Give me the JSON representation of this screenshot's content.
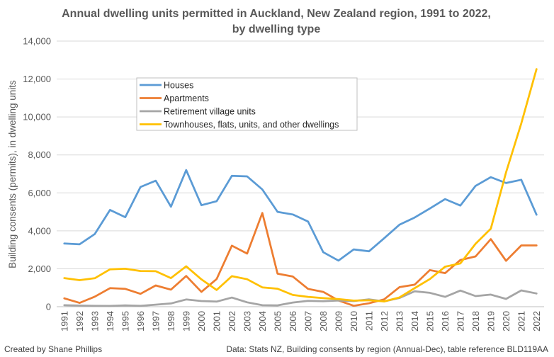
{
  "chart_data": {
    "type": "line",
    "title_line1": "Annual dwelling units permitted in Auckland, New Zealand region, 1991 to 2022,",
    "title_line2": "by dwelling type",
    "xlabel": "",
    "ylabel": "Building consents (permits), in dwelling units",
    "ylim": [
      0,
      14000
    ],
    "yticks": [
      0,
      2000,
      4000,
      6000,
      8000,
      10000,
      12000,
      14000
    ],
    "ytick_labels": [
      "0",
      "2,000",
      "4,000",
      "6,000",
      "8,000",
      "10,000",
      "12,000",
      "14,000"
    ],
    "x": [
      "1991",
      "1992",
      "1993",
      "1994",
      "1995",
      "1996",
      "1997",
      "1998",
      "1999",
      "2000",
      "2001",
      "2002",
      "2003",
      "2004",
      "2005",
      "2006",
      "2007",
      "2008",
      "2009",
      "2010",
      "2011",
      "2012",
      "2013",
      "2014",
      "2015",
      "2016",
      "2017",
      "2018",
      "2019",
      "2020",
      "2021",
      "2022"
    ],
    "grid": true,
    "legend_position": "upper-left-inside",
    "series": [
      {
        "name": "Houses",
        "color": "#5B9BD5",
        "values": [
          3330,
          3290,
          3830,
          5100,
          4720,
          6310,
          6640,
          5270,
          7200,
          5350,
          5560,
          6900,
          6870,
          6180,
          5000,
          4860,
          4490,
          2870,
          2430,
          3020,
          2920,
          3610,
          4320,
          4700,
          5180,
          5670,
          5330,
          6370,
          6830,
          6520,
          6690,
          4850
        ]
      },
      {
        "name": "Apartments",
        "color": "#ED7D31",
        "values": [
          440,
          200,
          530,
          980,
          940,
          680,
          1120,
          900,
          1620,
          780,
          1460,
          3220,
          2800,
          4940,
          1740,
          1590,
          940,
          780,
          330,
          50,
          180,
          390,
          1030,
          1160,
          1930,
          1770,
          2460,
          2650,
          3560,
          2420,
          3230,
          3230
        ]
      },
      {
        "name": "Retirement village units",
        "color": "#A5A5A5",
        "values": [
          80,
          60,
          50,
          40,
          70,
          50,
          110,
          170,
          380,
          300,
          270,
          480,
          230,
          80,
          70,
          220,
          310,
          290,
          330,
          300,
          390,
          280,
          460,
          810,
          730,
          520,
          850,
          560,
          640,
          410,
          860,
          700
        ]
      },
      {
        "name": "Townhouses, flats, units, and other dwellings",
        "color": "#FFC000",
        "values": [
          1510,
          1400,
          1500,
          1970,
          2000,
          1880,
          1870,
          1510,
          2130,
          1440,
          880,
          1610,
          1450,
          1020,
          950,
          620,
          520,
          450,
          400,
          320,
          340,
          280,
          490,
          980,
          1460,
          2110,
          2280,
          3320,
          4110,
          7080,
          9660,
          12520
        ]
      }
    ]
  },
  "footer": {
    "left": "Created by Shane Phillips",
    "right": "Data: Stats NZ, Building consents by region (Annual-Dec), table reference BLD119AA"
  }
}
